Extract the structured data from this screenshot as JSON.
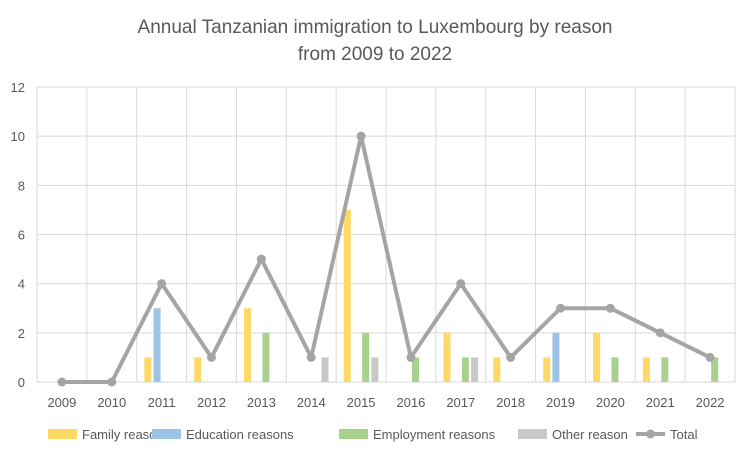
{
  "chart_data": {
    "type": "bar",
    "title": "Annual Tanzanian immigration to Luxembourg  by reason",
    "subtitle": "from 2009 to 2022",
    "xlabel": "",
    "ylabel": "",
    "ylim": [
      0,
      12
    ],
    "yticks": [
      "0",
      "2",
      "4",
      "6",
      "8",
      "10",
      "12"
    ],
    "grid": "on",
    "legend_position": "bottom",
    "categories": [
      "2009",
      "2010",
      "2011",
      "2012",
      "2013",
      "2014",
      "2015",
      "2016",
      "2017",
      "2018",
      "2019",
      "2020",
      "2021",
      "2022"
    ],
    "series": [
      {
        "name": "Family reasons",
        "kind": "bar",
        "color": "#FFD966",
        "values": [
          0,
          0,
          1,
          1,
          3,
          0,
          7,
          0,
          2,
          1,
          1,
          2,
          1,
          0
        ]
      },
      {
        "name": "Education reasons",
        "kind": "bar",
        "color": "#9DC3E6",
        "values": [
          0,
          0,
          3,
          0,
          0,
          0,
          0,
          0,
          0,
          0,
          2,
          0,
          0,
          0
        ]
      },
      {
        "name": "Employment reasons",
        "kind": "bar",
        "color": "#A9D18E",
        "values": [
          0,
          0,
          0,
          0,
          2,
          0,
          2,
          1,
          1,
          0,
          0,
          1,
          1,
          1
        ]
      },
      {
        "name": "Other reason",
        "kind": "bar",
        "color": "#C9C9C9",
        "values": [
          0,
          0,
          0,
          0,
          0,
          1,
          1,
          0,
          1,
          0,
          0,
          0,
          0,
          0
        ]
      },
      {
        "name": "Total",
        "kind": "line",
        "color": "#A5A5A5",
        "values": [
          0,
          0,
          4,
          1,
          5,
          1,
          10,
          1,
          4,
          1,
          3,
          3,
          2,
          1
        ]
      }
    ]
  }
}
